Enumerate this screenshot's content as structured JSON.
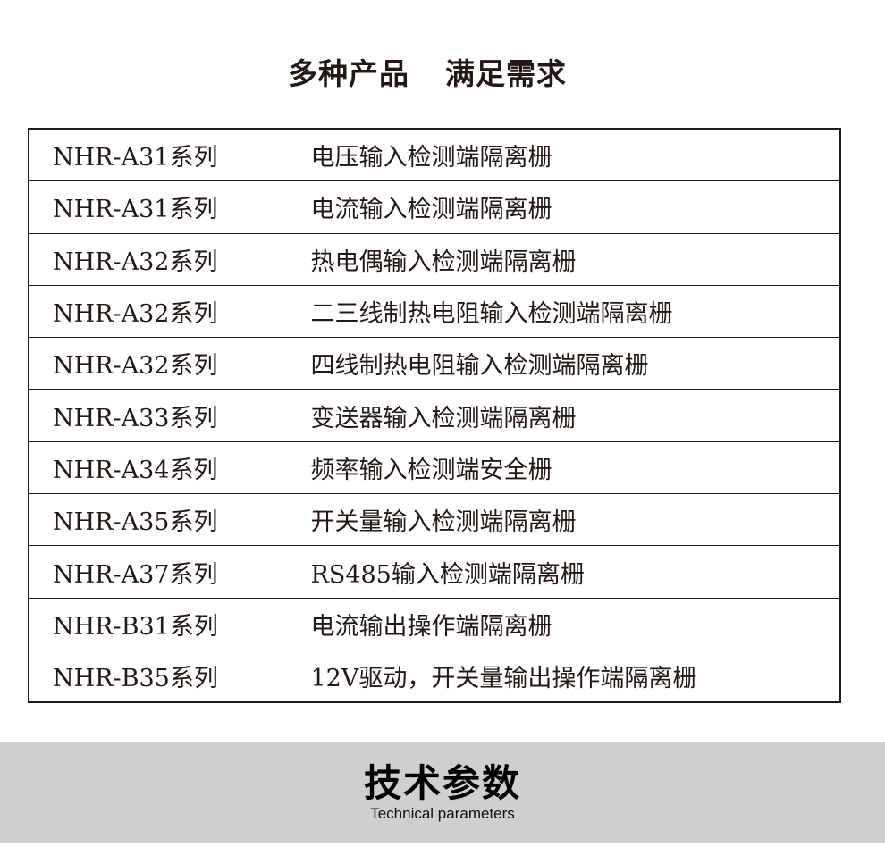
{
  "title": {
    "part1": "多种产品",
    "part2": "满足需求"
  },
  "table": {
    "rows": [
      {
        "series": "NHR-A31系列",
        "description": "电压输入检测端隔离栅"
      },
      {
        "series": "NHR-A31系列",
        "description": "电流输入检测端隔离栅"
      },
      {
        "series": "NHR-A32系列",
        "description": "热电偶输入检测端隔离栅"
      },
      {
        "series": "NHR-A32系列",
        "description": "二三线制热电阻输入检测端隔离栅"
      },
      {
        "series": "NHR-A32系列",
        "description": "四线制热电阻输入检测端隔离栅"
      },
      {
        "series": "NHR-A33系列",
        "description": "变送器输入检测端隔离栅"
      },
      {
        "series": "NHR-A34系列",
        "description": "频率输入检测端安全栅"
      },
      {
        "series": "NHR-A35系列",
        "description": "开关量输入检测端隔离栅"
      },
      {
        "series": "NHR-A37系列",
        "description": "RS485输入检测端隔离栅"
      },
      {
        "series": "NHR-B31系列",
        "description": "电流输出操作端隔离栅"
      },
      {
        "series": "NHR-B35系列",
        "description": "12V驱动，开关量输出操作端隔离栅"
      }
    ]
  },
  "section": {
    "title_zh": "技术参数",
    "title_en": "Technical parameters"
  },
  "colors": {
    "text": "#231815",
    "band": "#d0cecf"
  }
}
